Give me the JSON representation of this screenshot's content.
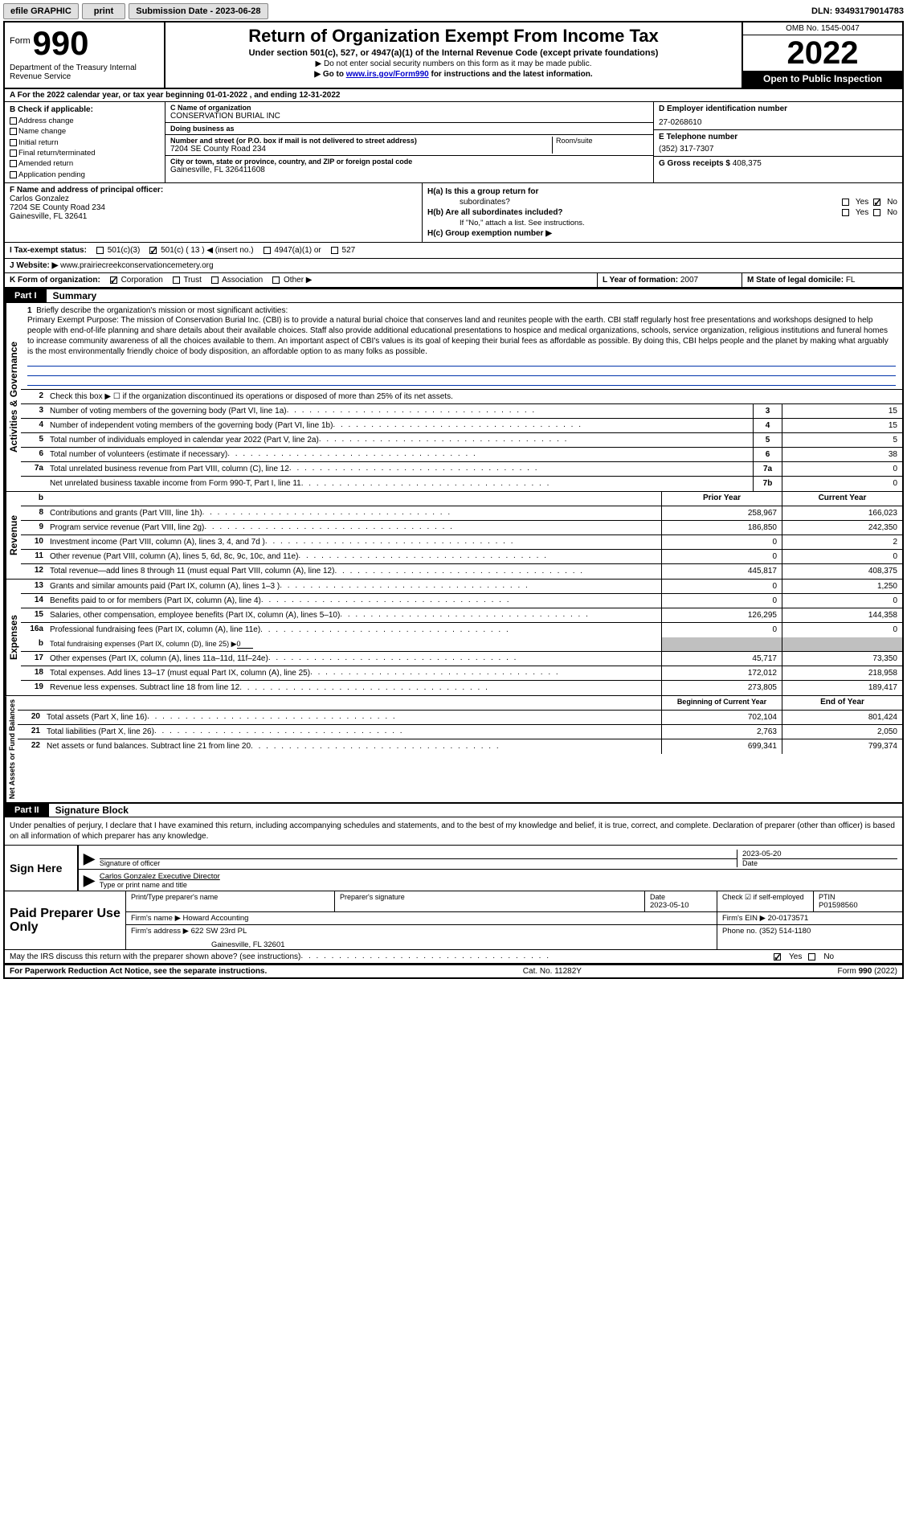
{
  "topbar": {
    "efile": "efile GRAPHIC",
    "print": "print",
    "submission": "Submission Date - 2023-06-28",
    "dln": "DLN: 93493179014783"
  },
  "header": {
    "form_word": "Form",
    "form_num": "990",
    "dept": "Department of the Treasury\nInternal Revenue Service",
    "title": "Return of Organization Exempt From Income Tax",
    "sub": "Under section 501(c), 527, or 4947(a)(1) of the Internal Revenue Code (except private foundations)",
    "note1": "▶ Do not enter social security numbers on this form as it may be made public.",
    "note2_a": "▶ Go to ",
    "note2_link": "www.irs.gov/Form990",
    "note2_b": " for instructions and the latest information.",
    "omb": "OMB No. 1545-0047",
    "year": "2022",
    "public": "Open to Public Inspection"
  },
  "rowA": "A   For the 2022 calendar year, or tax year beginning 01-01-2022    , and ending 12-31-2022",
  "boxB": {
    "hdr": "B Check if applicable:",
    "items": [
      "Address change",
      "Name change",
      "Initial return",
      "Final return/terminated",
      "Amended return",
      "Application pending"
    ]
  },
  "boxC": {
    "name_lbl": "C Name of organization",
    "name": "CONSERVATION BURIAL INC",
    "dba_lbl": "Doing business as",
    "dba": "",
    "addr_lbl": "Number and street (or P.O. box if mail is not delivered to street address)",
    "addr": "7204 SE County Road 234",
    "suite_lbl": "Room/suite",
    "city_lbl": "City or town, state or province, country, and ZIP or foreign postal code",
    "city": "Gainesville, FL  326411608"
  },
  "boxD": {
    "lbl": "D Employer identification number",
    "val": "27-0268610"
  },
  "boxE": {
    "lbl": "E Telephone number",
    "val": "(352) 317-7307"
  },
  "boxG": {
    "lbl": "G Gross receipts $",
    "val": "408,375"
  },
  "boxF": {
    "lbl": "F  Name and address of principal officer:",
    "name": "Carlos Gonzalez",
    "addr1": "7204 SE County Road 234",
    "addr2": "Gainesville, FL  32641"
  },
  "boxH": {
    "a_lbl": "H(a)  Is this a group return for",
    "a_sub": "subordinates?",
    "b_lbl": "H(b)  Are all subordinates included?",
    "b_note": "If \"No,\" attach a list. See instructions.",
    "c_lbl": "H(c)  Group exemption number ▶"
  },
  "rowI": {
    "lbl": "I    Tax-exempt status:",
    "opts": [
      "501(c)(3)",
      "501(c) ( 13 ) ◀ (insert no.)",
      "4947(a)(1) or",
      "527"
    ],
    "checked_idx": 1
  },
  "rowJ": {
    "lbl": "J   Website: ▶",
    "val": "www.prairiecreekconservationcemetery.org"
  },
  "rowK": {
    "lbl": "K Form of organization:",
    "opts": [
      "Corporation",
      "Trust",
      "Association",
      "Other ▶"
    ],
    "checked_idx": 0
  },
  "rowL": {
    "lbl": "L Year of formation:",
    "val": "2007"
  },
  "rowM": {
    "lbl": "M State of legal domicile:",
    "val": "FL"
  },
  "part1": {
    "tag": "Part I",
    "title": "Summary"
  },
  "mission": {
    "num": "1",
    "lbl": "Briefly describe the organization's mission or most significant activities:",
    "text": "Primary Exempt Purpose: The mission of Conservation Burial Inc. (CBI) is to provide a natural burial choice that conserves land and reunites people with the earth. CBI staff regularly host free presentations and workshops designed to help people with end-of-life planning and share details about their available choices. Staff also provide additional educational presentations to hospice and medical organizations, schools, service organization, religious institutions and funeral homes to increase community awareness of all the choices available to them. An important aspect of CBI's values is its goal of keeping their burial fees as affordable as possible. By doing this, CBI helps people and the planet by making what arguably is the most environmentally friendly choice of body disposition, an affordable option to as many folks as possible."
  },
  "line2": "Check this box ▶ ☐  if the organization discontinued its operations or disposed of more than 25% of its net assets.",
  "ag_lines": [
    {
      "n": "3",
      "t": "Number of voting members of the governing body (Part VI, line 1a)",
      "box": "3",
      "v": "15"
    },
    {
      "n": "4",
      "t": "Number of independent voting members of the governing body (Part VI, line 1b)",
      "box": "4",
      "v": "15"
    },
    {
      "n": "5",
      "t": "Total number of individuals employed in calendar year 2022 (Part V, line 2a)",
      "box": "5",
      "v": "5"
    },
    {
      "n": "6",
      "t": "Total number of volunteers (estimate if necessary)",
      "box": "6",
      "v": "38"
    },
    {
      "n": "7a",
      "t": "Total unrelated business revenue from Part VIII, column (C), line 12",
      "box": "7a",
      "v": "0"
    },
    {
      "n": "",
      "t": "Net unrelated business taxable income from Form 990-T, Part I, line 11",
      "box": "7b",
      "v": "0"
    }
  ],
  "b_suffix": "b",
  "col_hdrs": {
    "py": "Prior Year",
    "cy": "Current Year"
  },
  "rev_lines": [
    {
      "n": "8",
      "t": "Contributions and grants (Part VIII, line 1h)",
      "py": "258,967",
      "cy": "166,023"
    },
    {
      "n": "9",
      "t": "Program service revenue (Part VIII, line 2g)",
      "py": "186,850",
      "cy": "242,350"
    },
    {
      "n": "10",
      "t": "Investment income (Part VIII, column (A), lines 3, 4, and 7d )",
      "py": "0",
      "cy": "2"
    },
    {
      "n": "11",
      "t": "Other revenue (Part VIII, column (A), lines 5, 6d, 8c, 9c, 10c, and 11e)",
      "py": "0",
      "cy": "0"
    },
    {
      "n": "12",
      "t": "Total revenue—add lines 8 through 11 (must equal Part VIII, column (A), line 12)",
      "py": "445,817",
      "cy": "408,375"
    }
  ],
  "exp_lines": [
    {
      "n": "13",
      "t": "Grants and similar amounts paid (Part IX, column (A), lines 1–3 )",
      "py": "0",
      "cy": "1,250"
    },
    {
      "n": "14",
      "t": "Benefits paid to or for members (Part IX, column (A), line 4)",
      "py": "0",
      "cy": "0"
    },
    {
      "n": "15",
      "t": "Salaries, other compensation, employee benefits (Part IX, column (A), lines 5–10)",
      "py": "126,295",
      "cy": "144,358"
    },
    {
      "n": "16a",
      "t": "Professional fundraising fees (Part IX, column (A), line 11e)",
      "py": "0",
      "cy": "0"
    }
  ],
  "line16b": {
    "n": "b",
    "t": "Total fundraising expenses (Part IX, column (D), line 25) ▶",
    "v": "0"
  },
  "exp_lines2": [
    {
      "n": "17",
      "t": "Other expenses (Part IX, column (A), lines 11a–11d, 11f–24e)",
      "py": "45,717",
      "cy": "73,350"
    },
    {
      "n": "18",
      "t": "Total expenses. Add lines 13–17 (must equal Part IX, column (A), line 25)",
      "py": "172,012",
      "cy": "218,958"
    },
    {
      "n": "19",
      "t": "Revenue less expenses. Subtract line 18 from line 12",
      "py": "273,805",
      "cy": "189,417"
    }
  ],
  "na_hdrs": {
    "b": "Beginning of Current Year",
    "e": "End of Year"
  },
  "na_lines": [
    {
      "n": "20",
      "t": "Total assets (Part X, line 16)",
      "b": "702,104",
      "e": "801,424"
    },
    {
      "n": "21",
      "t": "Total liabilities (Part X, line 26)",
      "b": "2,763",
      "e": "2,050"
    },
    {
      "n": "22",
      "t": "Net assets or fund balances. Subtract line 21 from line 20",
      "b": "699,341",
      "e": "799,374"
    }
  ],
  "vert": {
    "ag": "Activities & Governance",
    "rev": "Revenue",
    "exp": "Expenses",
    "na": "Net Assets or\nFund Balances"
  },
  "part2": {
    "tag": "Part II",
    "title": "Signature Block"
  },
  "sig_decl": "Under penalties of perjury, I declare that I have examined this return, including accompanying schedules and statements, and to the best of my knowledge and belief, it is true, correct, and complete. Declaration of preparer (other than officer) is based on all information of which preparer has any knowledge.",
  "sign": {
    "here": "Sign Here",
    "date": "2023-05-20",
    "off_lbl": "Signature of officer",
    "date_lbl": "Date",
    "name": "Carlos Gonzalez  Executive Director",
    "name_lbl": "Type or print name and title"
  },
  "prep": {
    "title": "Paid Preparer Use Only",
    "name_lbl": "Print/Type preparer's name",
    "sig_lbl": "Preparer's signature",
    "date_lbl": "Date",
    "date": "2023-05-10",
    "check_lbl": "Check ☑ if self-employed",
    "ptin_lbl": "PTIN",
    "ptin": "P01598560",
    "firm_name_lbl": "Firm's name    ▶",
    "firm_name": "Howard Accounting",
    "firm_ein_lbl": "Firm's EIN ▶",
    "firm_ein": "20-0173571",
    "firm_addr_lbl": "Firm's address ▶",
    "firm_addr1": "622 SW 23rd PL",
    "firm_addr2": "Gainesville, FL  32601",
    "phone_lbl": "Phone no.",
    "phone": "(352) 514-1180"
  },
  "discuss": "May the IRS discuss this return with the preparer shown above? (see instructions)",
  "footer": {
    "left": "For Paperwork Reduction Act Notice, see the separate instructions.",
    "mid": "Cat. No. 11282Y",
    "right": "Form 990 (2022)"
  },
  "yn": {
    "yes": "Yes",
    "no": "No"
  }
}
